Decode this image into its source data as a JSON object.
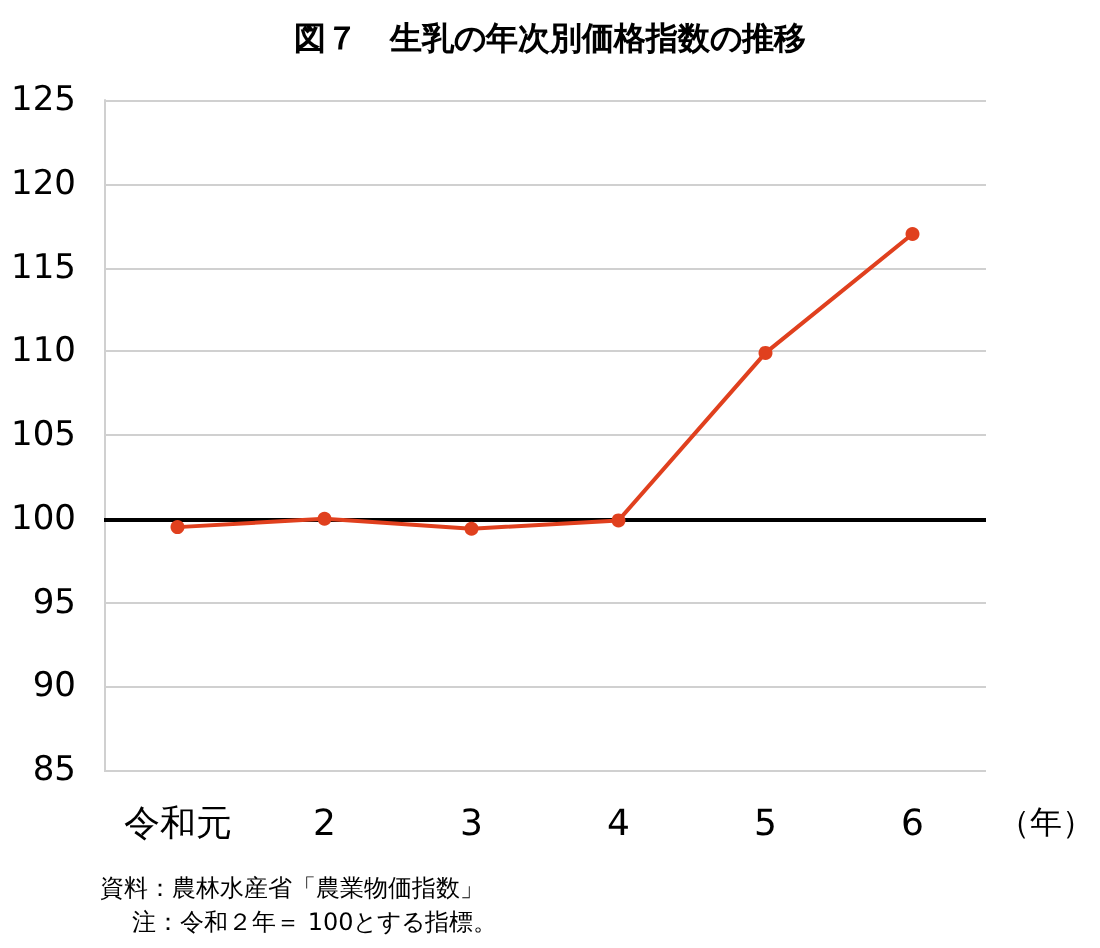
{
  "chart_data": {
    "type": "line",
    "title": "図７　生乳の年次別価格指数の推移",
    "xlabel": "（年）",
    "categories": [
      "令和元",
      "2",
      "3",
      "4",
      "5",
      "6"
    ],
    "series": [
      {
        "color": "#e0401e",
        "values": [
          99.5,
          100,
          99.4,
          99.9,
          109.9,
          117
        ]
      }
    ],
    "ylim": [
      85,
      125
    ],
    "yticks": [
      85,
      90,
      95,
      100,
      105,
      110,
      115,
      120,
      125
    ],
    "grid": "y",
    "marker": "circle",
    "line_style": "solid",
    "ref_lines": [
      {
        "axis": "y",
        "value": 100,
        "color": "#000000"
      }
    ],
    "annotations": [
      "資料：農林水産省「農業物価指数」",
      "注：令和２年＝ 100とする指標。"
    ]
  }
}
